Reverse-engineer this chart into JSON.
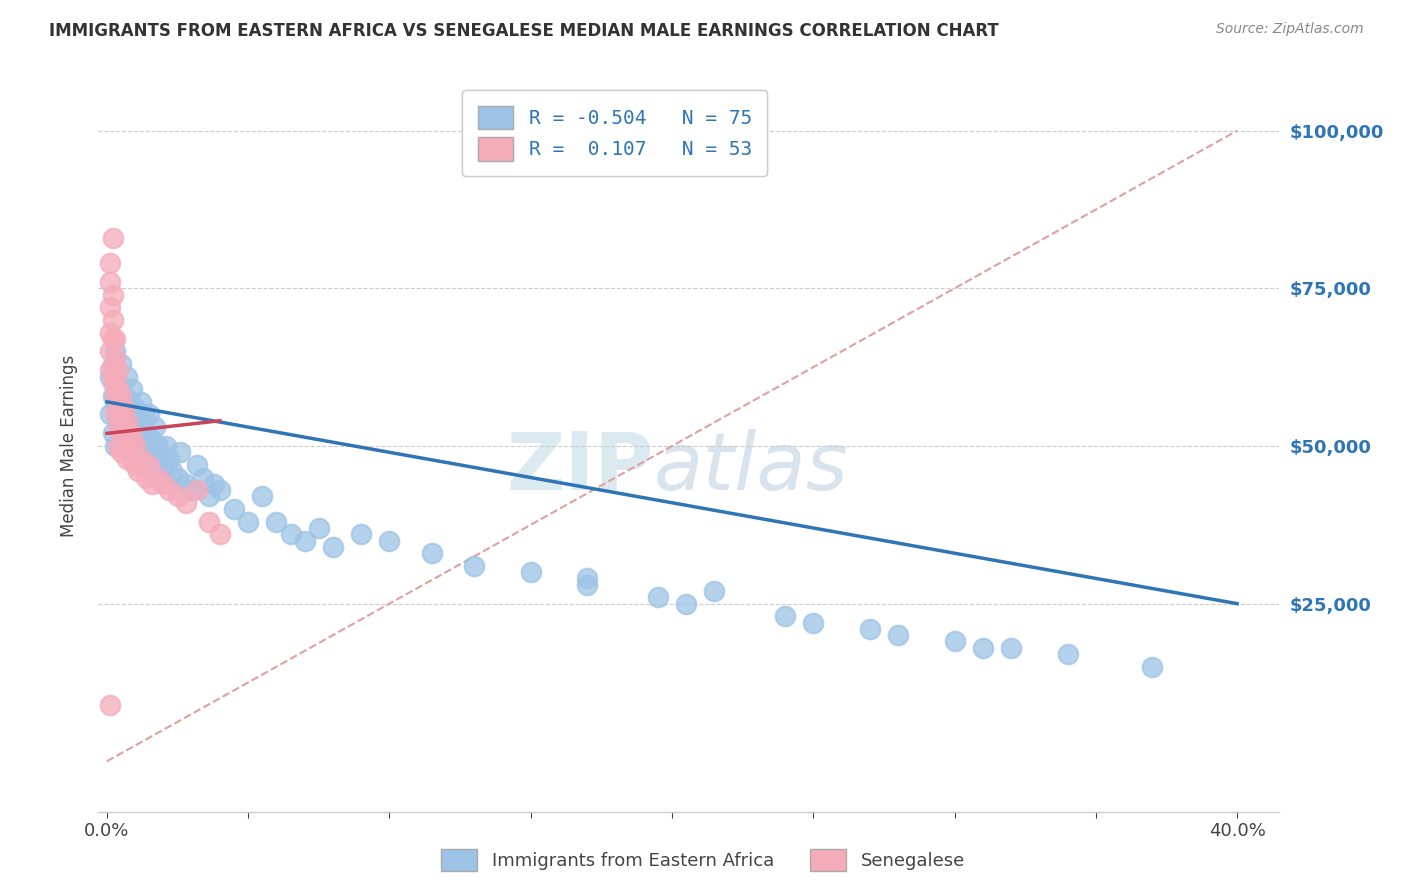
{
  "title": "IMMIGRANTS FROM EASTERN AFRICA VS SENEGALESE MEDIAN MALE EARNINGS CORRELATION CHART",
  "source": "Source: ZipAtlas.com",
  "ylabel": "Median Male Earnings",
  "x_ticks": [
    0.0,
    0.05,
    0.1,
    0.15,
    0.2,
    0.25,
    0.3,
    0.35,
    0.4
  ],
  "y_ticks": [
    0,
    25000,
    50000,
    75000,
    100000
  ],
  "y_tick_labels": [
    "",
    "$25,000",
    "$50,000",
    "$75,000",
    "$100,000"
  ],
  "xlim": [
    -0.003,
    0.415
  ],
  "ylim": [
    -8000,
    108000
  ],
  "legend1_label": "R = -0.504   N = 75",
  "legend2_label": "R =  0.107   N = 53",
  "legend_bottom_label1": "Immigrants from Eastern Africa",
  "legend_bottom_label2": "Senegalese",
  "watermark_zip": "ZIP",
  "watermark_atlas": "atlas",
  "blue_color": "#9DC3E6",
  "pink_color": "#F4ABBA",
  "blue_line_color": "#2E75B6",
  "pink_line_color": "#C9435A",
  "ref_line_color": "#E0A0A0",
  "blue_scatter_x": [
    0.001,
    0.001,
    0.002,
    0.002,
    0.003,
    0.003,
    0.003,
    0.004,
    0.004,
    0.005,
    0.005,
    0.005,
    0.006,
    0.006,
    0.006,
    0.007,
    0.007,
    0.008,
    0.008,
    0.009,
    0.009,
    0.01,
    0.01,
    0.011,
    0.012,
    0.012,
    0.013,
    0.013,
    0.014,
    0.015,
    0.015,
    0.016,
    0.017,
    0.018,
    0.019,
    0.02,
    0.021,
    0.022,
    0.023,
    0.025,
    0.026,
    0.028,
    0.03,
    0.032,
    0.034,
    0.036,
    0.038,
    0.04,
    0.045,
    0.05,
    0.055,
    0.06,
    0.065,
    0.07,
    0.075,
    0.08,
    0.09,
    0.1,
    0.115,
    0.13,
    0.15,
    0.17,
    0.195,
    0.215,
    0.24,
    0.27,
    0.3,
    0.32,
    0.34,
    0.37,
    0.205,
    0.25,
    0.17,
    0.28,
    0.31
  ],
  "blue_scatter_y": [
    61000,
    55000,
    58000,
    52000,
    65000,
    57000,
    50000,
    60000,
    54000,
    63000,
    56000,
    52000,
    58000,
    55000,
    50000,
    61000,
    53000,
    57000,
    52000,
    59000,
    54000,
    56000,
    50000,
    54000,
    57000,
    52000,
    55000,
    48000,
    52000,
    55000,
    49000,
    51000,
    53000,
    50000,
    48000,
    47000,
    50000,
    48000,
    46000,
    45000,
    49000,
    44000,
    43000,
    47000,
    45000,
    42000,
    44000,
    43000,
    40000,
    38000,
    42000,
    38000,
    36000,
    35000,
    37000,
    34000,
    36000,
    35000,
    33000,
    31000,
    30000,
    28000,
    26000,
    27000,
    23000,
    21000,
    19000,
    18000,
    17000,
    15000,
    25000,
    22000,
    29000,
    20000,
    18000
  ],
  "pink_scatter_x": [
    0.001,
    0.001,
    0.001,
    0.001,
    0.001,
    0.001,
    0.002,
    0.002,
    0.002,
    0.002,
    0.002,
    0.003,
    0.003,
    0.003,
    0.003,
    0.003,
    0.004,
    0.004,
    0.004,
    0.004,
    0.004,
    0.005,
    0.005,
    0.005,
    0.005,
    0.006,
    0.006,
    0.006,
    0.007,
    0.007,
    0.007,
    0.008,
    0.008,
    0.009,
    0.009,
    0.01,
    0.01,
    0.011,
    0.012,
    0.013,
    0.014,
    0.015,
    0.016,
    0.018,
    0.02,
    0.022,
    0.025,
    0.028,
    0.032,
    0.036,
    0.04,
    0.002,
    0.001
  ],
  "pink_scatter_y": [
    76000,
    72000,
    68000,
    65000,
    62000,
    79000,
    74000,
    70000,
    67000,
    63000,
    60000,
    67000,
    64000,
    61000,
    58000,
    55000,
    62000,
    59000,
    56000,
    53000,
    50000,
    58000,
    55000,
    52000,
    49000,
    56000,
    53000,
    50000,
    54000,
    51000,
    48000,
    52000,
    49000,
    51000,
    48000,
    50000,
    47000,
    46000,
    48000,
    47000,
    45000,
    47000,
    44000,
    45000,
    44000,
    43000,
    42000,
    41000,
    43000,
    38000,
    36000,
    83000,
    9000
  ]
}
